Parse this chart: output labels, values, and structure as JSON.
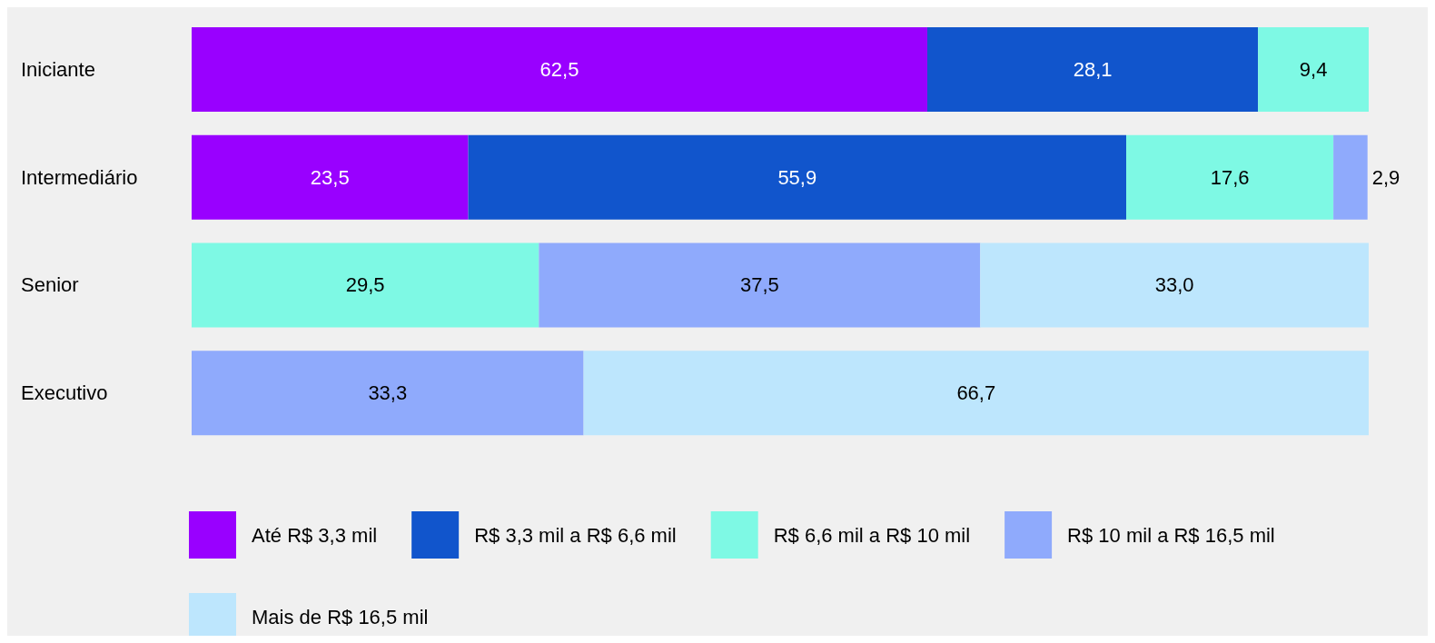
{
  "chart_data": {
    "type": "bar",
    "orientation": "horizontal",
    "stacked": true,
    "legend": "bottom",
    "categories": [
      "Iniciante",
      "Intermediário",
      "Senior",
      "Executivo"
    ],
    "series": [
      {
        "name": "Até R$ 3,3 mil",
        "color": "#9900ff",
        "values": [
          62.5,
          23.5,
          null,
          null
        ],
        "value_labels": [
          "62,5",
          "23,5",
          null,
          null
        ]
      },
      {
        "name": "R$ 3,3 mil a R$ 6,6 mil",
        "color": "#1155cc",
        "values": [
          28.1,
          55.9,
          null,
          null
        ],
        "value_labels": [
          "28,1",
          "55,9",
          null,
          null
        ]
      },
      {
        "name": "R$ 6,6 mil a R$ 10 mil",
        "color": "#7ef9e4",
        "values": [
          9.4,
          17.6,
          29.5,
          null
        ],
        "value_labels": [
          "9,4",
          "17,6",
          "29,5",
          null
        ]
      },
      {
        "name": "R$ 10 mil a R$ 16,5 mil",
        "color": "#8faafc",
        "values": [
          null,
          2.9,
          37.5,
          33.3
        ],
        "value_labels": [
          null,
          "2,9",
          "37,5",
          "33,3"
        ]
      },
      {
        "name": "Mais de R$ 16,5 mil",
        "color": "#bde6fd",
        "values": [
          null,
          null,
          33.0,
          66.7
        ],
        "value_labels": [
          null,
          null,
          "33,0",
          "66,7"
        ]
      }
    ]
  }
}
